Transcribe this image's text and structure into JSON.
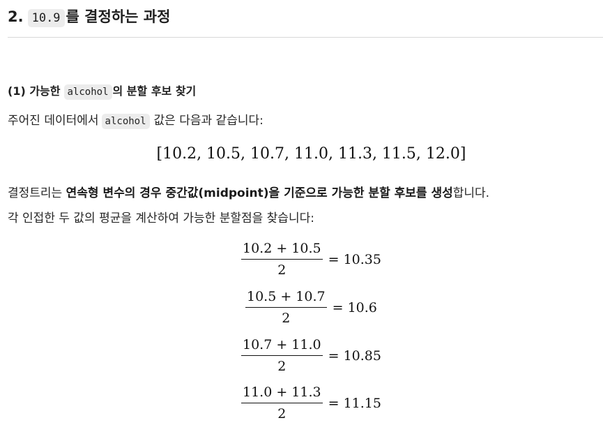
{
  "heading": {
    "number": "2.",
    "code": "10.9",
    "text": "를 결정하는 과정"
  },
  "subheading": {
    "prefix": "(1) 가능한",
    "code": "alcohol",
    "suffix": "의 분할 후보 찾기"
  },
  "intro": {
    "before": "주어진 데이터에서",
    "code": "alcohol",
    "after": "값은 다음과 같습니다:"
  },
  "values_display": "[10.2, 10.5, 10.7, 11.0, 11.3, 11.5, 12.0]",
  "para2": {
    "prefix": "결정트리는 ",
    "bold": "연속형 변수의 경우 중간값(midpoint)을 기준으로 가능한 분할 후보를 생성",
    "suffix": "합니다."
  },
  "para3": "각 인접한 두 값의 평균을 계산하여 가능한 분할점을 찾습니다:",
  "equations": [
    {
      "numerator": "10.2 + 10.5",
      "denominator": "2",
      "result": "= 10.35"
    },
    {
      "numerator": "10.5 + 10.7",
      "denominator": "2",
      "result": "= 10.6"
    },
    {
      "numerator": "10.7 + 11.0",
      "denominator": "2",
      "result": "= 10.85"
    },
    {
      "numerator": "11.0 + 11.3",
      "denominator": "2",
      "result": "= 11.15"
    }
  ]
}
